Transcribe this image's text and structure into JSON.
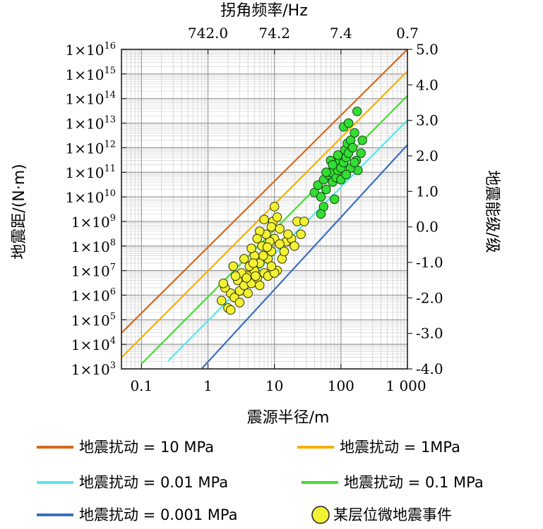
{
  "chart_data": {
    "type": "scatter",
    "title": "",
    "xlabel": "震源半径/m",
    "ylabel": "地震距/(N·m)",
    "top_xlabel": "拐角频率/Hz",
    "right_ylabel": "地震能级/级",
    "x_scale": "log",
    "y_scale": "log",
    "xlim": [
      0.05,
      1000
    ],
    "ylim": [
      1000,
      1e+16
    ],
    "grid": true,
    "x_ticks": [
      {
        "value": 0.1,
        "label": "0.1"
      },
      {
        "value": 1,
        "label": "1"
      },
      {
        "value": 10,
        "label": "10"
      },
      {
        "value": 100,
        "label": "100"
      },
      {
        "value": 1000,
        "label": "1 000"
      }
    ],
    "y_ticks": [
      {
        "value": 1000.0,
        "base": "1×10",
        "exp": "3"
      },
      {
        "value": 10000.0,
        "base": "1×10",
        "exp": "4"
      },
      {
        "value": 100000.0,
        "base": "1×10",
        "exp": "5"
      },
      {
        "value": 1000000.0,
        "base": "1×10",
        "exp": "6"
      },
      {
        "value": 10000000.0,
        "base": "1×10",
        "exp": "7"
      },
      {
        "value": 100000000.0,
        "base": "1×10",
        "exp": "8"
      },
      {
        "value": 1000000000.0,
        "base": "1×10",
        "exp": "9"
      },
      {
        "value": 10000000000.0,
        "base": "1×10",
        "exp": "10"
      },
      {
        "value": 100000000000.0,
        "base": "1×10",
        "exp": "11"
      },
      {
        "value": 1000000000000.0,
        "base": "1×10",
        "exp": "12"
      },
      {
        "value": 10000000000000.0,
        "base": "1×10",
        "exp": "13"
      },
      {
        "value": 100000000000000.0,
        "base": "1×10",
        "exp": "14"
      },
      {
        "value": 1000000000000000.0,
        "base": "1×10",
        "exp": "15"
      },
      {
        "value": 1e+16,
        "base": "1×10",
        "exp": "16"
      }
    ],
    "top_ticks": [
      {
        "x": 1,
        "label": "742.0"
      },
      {
        "x": 10,
        "label": "74.2"
      },
      {
        "x": 100,
        "label": "7.4"
      },
      {
        "x": 1000,
        "label": "0.7"
      }
    ],
    "right_ticks": [
      {
        "value": 5.0,
        "label": "5.0"
      },
      {
        "value": 4.0,
        "label": "4.0"
      },
      {
        "value": 3.0,
        "label": "3.0"
      },
      {
        "value": 2.0,
        "label": "2.0"
      },
      {
        "value": 1.0,
        "label": "1.0"
      },
      {
        "value": 0.0,
        "label": "0.0"
      },
      {
        "value": -1.0,
        "label": "-1.0"
      },
      {
        "value": -2.0,
        "label": "-2.0"
      },
      {
        "value": -3.0,
        "label": "-3.0"
      },
      {
        "value": -4.0,
        "label": "-4.0"
      }
    ],
    "right_ylim": [
      -4.0,
      5.0
    ],
    "stress_lines": [
      {
        "name": "地震扰动 = 10 MPa",
        "x": [
          0.05,
          1000
        ],
        "y": [
          29000.0,
          1e+16
        ],
        "color": "#d2691e"
      },
      {
        "name": "地震扰动 = 1MPa",
        "x": [
          0.05,
          1000
        ],
        "y": [
          2900.0,
          1300000000000000.0
        ],
        "color": "#f5b000"
      },
      {
        "name": "地震扰动 = 0.1 MPa",
        "x": [
          0.1,
          1000
        ],
        "y": [
          1600.0,
          130000000000000.0
        ],
        "color": "#44dd33"
      },
      {
        "name": "地震扰动 = 0.01 MPa",
        "x": [
          0.25,
          1000
        ],
        "y": [
          2100.0,
          13000000000000.0
        ],
        "color": "#55e8f0"
      },
      {
        "name": "地震扰动 = 0.001 MPa",
        "x": [
          0.8,
          1000
        ],
        "y": [
          1000.0,
          1300000000000.0
        ],
        "color": "#3a6fc0"
      }
    ],
    "series": [
      {
        "name": "某层位微地震事件",
        "color": "#f2f233",
        "edge_color": "#333300",
        "points": [
          [
            1.6,
            600000.0
          ],
          [
            2.0,
            300000.0
          ],
          [
            2.2,
            1200000.0
          ],
          [
            1.8,
            2000000.0
          ],
          [
            2.5,
            800000.0
          ],
          [
            3.0,
            1500000.0
          ],
          [
            2.8,
            4000000.0
          ],
          [
            3.5,
            2500000.0
          ],
          [
            4.0,
            6000000.0
          ],
          [
            4.5,
            3000000.0
          ],
          [
            5.0,
            10000000.0
          ],
          [
            3.2,
            8000000.0
          ],
          [
            2.6,
            6000000.0
          ],
          [
            6.0,
            20000000.0
          ],
          [
            5.5,
            5000000.0
          ],
          [
            7.0,
            8000000.0
          ],
          [
            8.0,
            30000000.0
          ],
          [
            6.5,
            100000000.0
          ],
          [
            5.0,
            40000000.0
          ],
          [
            4.2,
            15000000.0
          ],
          [
            3.8,
            5000000.0
          ],
          [
            9.0,
            60000000.0
          ],
          [
            10,
            200000000.0
          ],
          [
            8.5,
            150000000.0
          ],
          [
            7.5,
            300000000.0
          ],
          [
            9.5,
            1000000000.0
          ],
          [
            10,
            4000000000.0
          ],
          [
            9.0,
            600000000.0
          ],
          [
            12,
            500000000.0
          ],
          [
            15,
            150000000.0
          ],
          [
            13,
            30000000.0
          ],
          [
            11,
            10000000.0
          ],
          [
            14,
            60000000.0
          ],
          [
            18,
            200000000.0
          ],
          [
            20,
            100000000.0
          ],
          [
            16,
            300000000.0
          ],
          [
            12,
            120000000.0
          ],
          [
            11,
            1500000000.0
          ],
          [
            6.0,
            400000000.0
          ],
          [
            7.0,
            1200000000.0
          ],
          [
            5.5,
            200000000.0
          ],
          [
            4.5,
            80000000.0
          ],
          [
            3.5,
            30000000.0
          ],
          [
            2.4,
            15000000.0
          ],
          [
            1.7,
            3000000.0
          ],
          [
            2.2,
            250000.0
          ],
          [
            3.0,
            500000.0
          ],
          [
            4.0,
            1200000.0
          ],
          [
            6.0,
            2500000.0
          ],
          [
            8.0,
            6000000.0
          ],
          [
            10,
            8000000.0
          ],
          [
            9.0,
            15000000.0
          ],
          [
            6.8,
            40000000.0
          ],
          [
            4.8,
            20000000.0
          ],
          [
            5.2,
            6000000.0
          ],
          [
            7.8,
            90000000.0
          ],
          [
            22,
            1000000000.0
          ],
          [
            28,
            1000000000.0
          ],
          [
            25,
            300000000.0
          ]
        ]
      },
      {
        "name": "",
        "color": "#33dd33",
        "edge_color": "#114411",
        "points": [
          [
            40,
            15000000000.0
          ],
          [
            45,
            30000000000.0
          ],
          [
            50,
            10000000000.0
          ],
          [
            55,
            50000000000.0
          ],
          [
            60,
            20000000000.0
          ],
          [
            65,
            80000000000.0
          ],
          [
            70,
            100000000000.0
          ],
          [
            75,
            40000000000.0
          ],
          [
            80,
            200000000000.0
          ],
          [
            85,
            60000000000.0
          ],
          [
            90,
            120000000000.0
          ],
          [
            95,
            300000000000.0
          ],
          [
            100,
            150000000000.0
          ],
          [
            105,
            500000000000.0
          ],
          [
            110,
            250000000000.0
          ],
          [
            115,
            800000000000.0
          ],
          [
            120,
            400000000000.0
          ],
          [
            125,
            1500000000000.0
          ],
          [
            130,
            600000000000.0
          ],
          [
            140,
            2000000000000.0
          ],
          [
            150,
            1000000000000.0
          ],
          [
            160,
            4000000000000.0
          ],
          [
            170,
            300000000000.0
          ],
          [
            180,
            120000000000.0
          ],
          [
            200,
            600000000000.0
          ],
          [
            210,
            2000000000000.0
          ],
          [
            110,
            7000000000000.0
          ],
          [
            130,
            10000000000000.0
          ],
          [
            175,
            30000000000000.0
          ],
          [
            70,
            300000000000.0
          ],
          [
            60,
            100000000000.0
          ],
          [
            55,
            4000000000.0
          ],
          [
            80,
            8000000000.0
          ],
          [
            100,
            50000000000.0
          ],
          [
            140,
            150000000000.0
          ],
          [
            160,
            250000000000.0
          ],
          [
            120,
            80000000000.0
          ],
          [
            90,
            500000000000.0
          ],
          [
            75,
            200000000000.0
          ],
          [
            50,
            2000000000.0
          ]
        ]
      }
    ],
    "legend": {
      "placement": "bottom",
      "items": [
        {
          "label": "地震扰动 = 10 MPa",
          "kind": "line",
          "color": "#d2691e"
        },
        {
          "label": "地震扰动 = 1MPa",
          "kind": "line",
          "color": "#f5b000"
        },
        {
          "label": "地震扰动 = 0.01 MPa",
          "kind": "line",
          "color": "#55e8f0"
        },
        {
          "label": "地震扰动 = 0.1 MPa",
          "kind": "line",
          "color": "#44dd33"
        },
        {
          "label": "地震扰动 = 0.001 MPa",
          "kind": "line",
          "color": "#3a6fc0"
        },
        {
          "label": "某层位微地震事件",
          "kind": "marker",
          "color": "#f2f233"
        }
      ]
    }
  }
}
